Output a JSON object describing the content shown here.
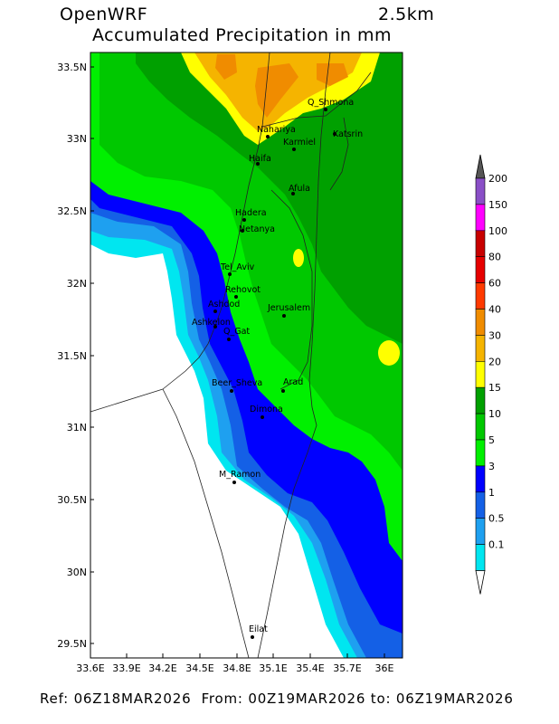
{
  "header": {
    "model": "OpenWRF",
    "resolution": "2.5km",
    "variable": "Accumulated Precipitation in mm"
  },
  "footer": {
    "ref_label": "Ref:",
    "ref_time": "06Z18MAR2026",
    "from_label": "From:",
    "from_time": "00Z19MAR2026",
    "to_label": "to:",
    "to_time": "06Z19MAR2026"
  },
  "axes": {
    "lon_ticks": [
      "33.6E",
      "33.9E",
      "34.2E",
      "34.5E",
      "34.8E",
      "35.1E",
      "35.4E",
      "35.7E",
      "36E"
    ],
    "lat_ticks": [
      "33.5N",
      "33N",
      "32.5N",
      "32N",
      "31.5N",
      "31N",
      "30.5N",
      "30N",
      "29.5N"
    ]
  },
  "colorbar": {
    "levels": [
      "200",
      "150",
      "100",
      "80",
      "60",
      "40",
      "30",
      "20",
      "15",
      "10",
      "5",
      "3",
      "1",
      "0.5",
      "0.1"
    ],
    "colors": [
      "#8a4fc7",
      "#ff00ff",
      "#c80000",
      "#e60000",
      "#ff3a00",
      "#f08c00",
      "#f5b400",
      "#ffff00",
      "#00a000",
      "#00c800",
      "#00f000",
      "#0000ff",
      "#1460e6",
      "#1ea0f0",
      "#00e6f0"
    ]
  },
  "cities": [
    {
      "name": "Q_Shmona"
    },
    {
      "name": "Nahariya"
    },
    {
      "name": "Karmiel"
    },
    {
      "name": "Katsrin"
    },
    {
      "name": "Haifa"
    },
    {
      "name": "Afula"
    },
    {
      "name": "Hadera"
    },
    {
      "name": "Netanya"
    },
    {
      "name": "Tel_Aviv"
    },
    {
      "name": "Rehovot"
    },
    {
      "name": "Ashdod"
    },
    {
      "name": "Jerusalem"
    },
    {
      "name": "Ashkelon"
    },
    {
      "name": "Q_Gat"
    },
    {
      "name": "Beer_Sheva"
    },
    {
      "name": "Arad"
    },
    {
      "name": "Dimona"
    },
    {
      "name": "M_Ramon"
    },
    {
      "name": "Eilat"
    }
  ]
}
